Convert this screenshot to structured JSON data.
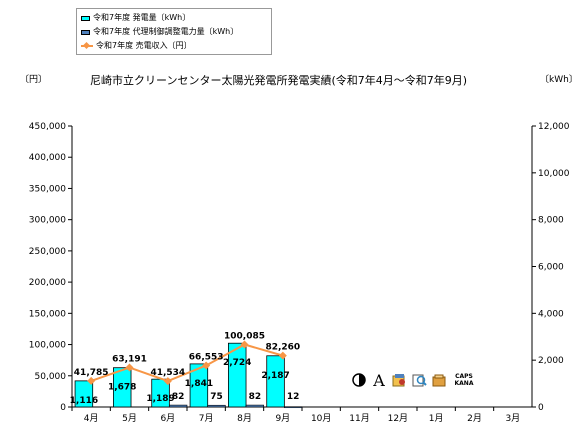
{
  "legend": {
    "items": [
      {
        "label": "令和7年度 発電量〔kWh〕",
        "color": "#00ffff",
        "kind": "bar"
      },
      {
        "label": "令和7年度 代理制御調整電力量〔kWh〕",
        "color": "#4f81bd",
        "kind": "bar"
      },
      {
        "label": "令和7年度 売電収入〔円〕",
        "color": "#f79646",
        "kind": "line"
      }
    ]
  },
  "chart_data": {
    "type": "bar",
    "title": "尼崎市立クリーンセンター太陽光発電所発電実績(令和7年4月～令和7年9月)",
    "y_left_unit": "〔円〕",
    "y_right_unit": "〔kWh〕",
    "categories": [
      "4月",
      "5月",
      "6月",
      "7月",
      "8月",
      "9月",
      "10月",
      "11月",
      "12月",
      "1月",
      "2月",
      "3月"
    ],
    "ylim_left": [
      0,
      450000
    ],
    "yticks_left": [
      "0",
      "50,000",
      "100,000",
      "150,000",
      "200,000",
      "250,000",
      "300,000",
      "350,000",
      "400,000",
      "450,000"
    ],
    "ylim_right": [
      0,
      12000
    ],
    "yticks_right": [
      "0",
      "2,000",
      "4,000",
      "6,000",
      "8,000",
      "10,000",
      "12,000"
    ],
    "series": [
      {
        "name": "令和7年度 発電量〔kWh〕",
        "axis": "right",
        "kind": "bar",
        "color": "#00ffff",
        "values": [
          1116,
          1678,
          1189,
          1841,
          2724,
          2187,
          null,
          null,
          null,
          null,
          null,
          null
        ],
        "labels": [
          "1,116",
          "1,678",
          "1,189",
          "1,841",
          "2,724",
          "2,187",
          "",
          "",
          "",
          "",
          "",
          ""
        ]
      },
      {
        "name": "令和7年度 代理制御調整電力量〔kWh〕",
        "axis": "right",
        "kind": "bar",
        "color": "#4f81bd",
        "values": [
          0,
          0,
          82,
          75,
          82,
          12,
          null,
          null,
          null,
          null,
          null,
          null
        ],
        "labels": [
          "",
          "",
          "82",
          "75",
          "82",
          "12",
          "",
          "",
          "",
          "",
          "",
          ""
        ]
      },
      {
        "name": "令和7年度 売電収入〔円〕",
        "axis": "left",
        "kind": "line",
        "color": "#f79646",
        "values": [
          41785,
          63191,
          41534,
          66553,
          100085,
          82260,
          null,
          null,
          null,
          null,
          null,
          null
        ],
        "labels": [
          "41,785",
          "63,191",
          "41,534",
          "66,553",
          "100,085",
          "82,260",
          "",
          "",
          "",
          "",
          "",
          ""
        ]
      }
    ]
  },
  "toolbar": {
    "icons": [
      "ime-mode-icon",
      "font-icon",
      "dictionary-icon",
      "tools-icon",
      "settings-icon"
    ],
    "font_glyph": "A",
    "caps": "CAPS",
    "kana": "KANA"
  }
}
